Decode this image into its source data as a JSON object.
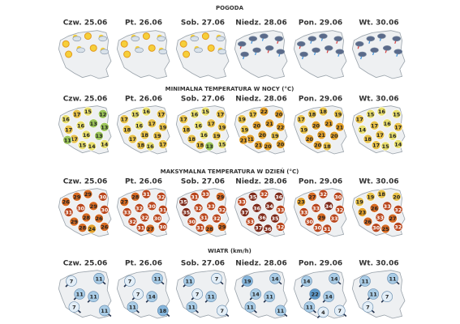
{
  "sections": [
    {
      "title": "POGODA",
      "days": [
        {
          "label": "Czw. 25.06"
        },
        {
          "label": "Pt. 26.06"
        },
        {
          "label": "Sob. 27.06"
        },
        {
          "label": "Niedz. 28.06"
        },
        {
          "label": "Pon. 29.06"
        },
        {
          "label": "Wt. 30.06"
        }
      ]
    },
    {
      "title": "MINIMALNA TEMPERATURA W NOCY (°C)",
      "days": [
        {
          "label": "Czw. 25.06",
          "values": [
            16,
            17,
            15,
            12,
            17,
            16,
            13,
            13,
            17,
            16,
            13,
            15,
            14,
            14,
            11
          ]
        },
        {
          "label": "Pt. 26.06",
          "values": [
            17,
            15,
            16,
            17,
            18,
            16,
            17,
            19,
            17,
            18,
            19,
            18,
            16,
            17
          ]
        },
        {
          "label": "Sob. 27.06",
          "values": [
            17,
            16,
            15,
            17,
            18,
            16,
            17,
            19,
            18,
            16,
            19,
            18,
            13,
            15
          ]
        },
        {
          "label": "Niedz. 28.06",
          "values": [
            19,
            17,
            22,
            20,
            19,
            20,
            21,
            22,
            21,
            20,
            19,
            21,
            20,
            20,
            21
          ]
        },
        {
          "label": "Pon. 29.06",
          "values": [
            17,
            18,
            18,
            19,
            19,
            20,
            21,
            21,
            20,
            21,
            20,
            20,
            18
          ]
        },
        {
          "label": "Wt. 30.06",
          "values": [
            17,
            15,
            16,
            15,
            14,
            17,
            16,
            17,
            18,
            17,
            16,
            17,
            15,
            14
          ]
        }
      ]
    },
    {
      "title": "MAKSYMALNA TEMPERATURA W DZIEŃ (°C)",
      "days": [
        {
          "label": "Czw. 25.06",
          "values": [
            26,
            29,
            29,
            30,
            31,
            30,
            29,
            30,
            29,
            28,
            26,
            28,
            24,
            26
          ]
        },
        {
          "label": "Pt. 26.06",
          "values": [
            27,
            28,
            31,
            32,
            33,
            32,
            30,
            31,
            32,
            32,
            30,
            31,
            27,
            30
          ]
        },
        {
          "label": "Sob. 27.06",
          "values": [
            35,
            31,
            33,
            29,
            35,
            32,
            33,
            32,
            30,
            31,
            32,
            31,
            28,
            29
          ]
        },
        {
          "label": "Niedz. 28.06",
          "values": [
            33,
            35,
            32,
            36,
            37,
            36,
            34,
            33,
            33,
            36,
            35,
            37,
            36,
            32
          ]
        },
        {
          "label": "Pon. 29.06",
          "values": [
            23,
            27,
            32,
            30,
            33,
            33,
            34,
            32,
            30,
            29,
            33,
            30,
            31
          ]
        },
        {
          "label": "Wt. 30.06",
          "values": [
            19,
            19,
            18,
            20,
            23,
            26,
            33,
            32,
            26,
            33,
            27,
            30,
            25,
            32
          ]
        }
      ]
    },
    {
      "title": "WIATR (km/h)",
      "days": [
        {
          "label": "Czw. 25.06",
          "values": [
            7,
            11,
            11,
            7,
            11,
            11
          ]
        },
        {
          "label": "Pt. 26.06",
          "values": [
            7,
            11,
            7,
            11,
            14,
            18
          ]
        },
        {
          "label": "Sob. 27.06",
          "values": [
            11,
            7,
            7,
            11,
            11,
            7
          ]
        },
        {
          "label": "Niedz. 28.06",
          "values": [
            19,
            14,
            14,
            11,
            11,
            11
          ]
        },
        {
          "label": "Pon. 29.06",
          "values": [
            14,
            14,
            22,
            11,
            14,
            7,
            4
          ]
        },
        {
          "label": "Wt. 30.06",
          "values": [
            11,
            11,
            11,
            7,
            7
          ]
        }
      ]
    }
  ]
}
